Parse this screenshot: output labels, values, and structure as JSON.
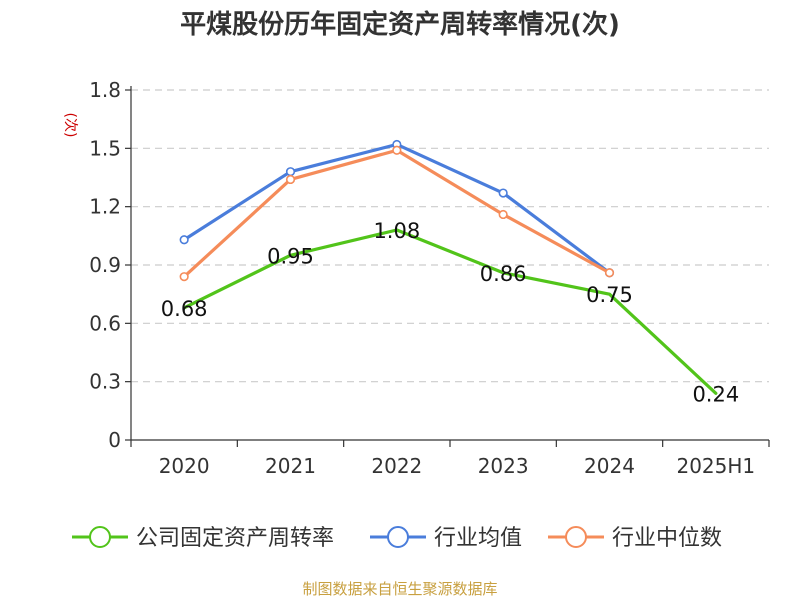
{
  "chart_data": {
    "type": "line",
    "title": "平煤股份历年固定资产周转率情况(次)",
    "ylabel": "(次)",
    "xlabel": "",
    "categories": [
      "2020",
      "2021",
      "2022",
      "2023",
      "2024",
      "2025H1"
    ],
    "ylim": [
      0,
      1.8
    ],
    "yticks": [
      "0",
      "0.3",
      "0.6",
      "0.9",
      "1.2",
      "1.5",
      "1.8"
    ],
    "grid": true,
    "legend_position": "bottom",
    "series": [
      {
        "name": "公司固定资产周转率",
        "color": "#52c41a",
        "values": [
          0.68,
          0.95,
          1.08,
          0.86,
          0.75,
          0.24
        ],
        "labels": [
          "0.68",
          "0.95",
          "1.08",
          "0.86",
          "0.75",
          "0.24"
        ]
      },
      {
        "name": "行业均值",
        "color": "#4a7ddb",
        "values": [
          1.03,
          1.38,
          1.52,
          1.27,
          0.86,
          null
        ]
      },
      {
        "name": "行业中位数",
        "color": "#f58c5a",
        "values": [
          0.84,
          1.34,
          1.49,
          1.16,
          0.86,
          null
        ]
      }
    ]
  },
  "colors": {
    "unit": "#cc0000",
    "source": "#c8a040",
    "axis": "#333333",
    "grid": "#cccccc"
  },
  "source": "制图数据来自恒生聚源数据库"
}
